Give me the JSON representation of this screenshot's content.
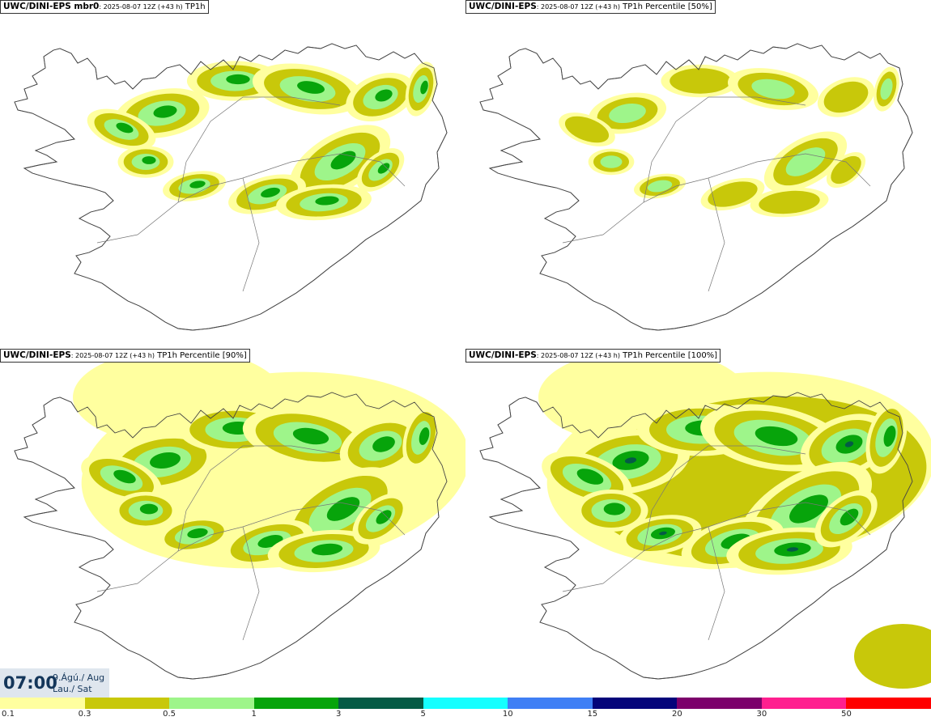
{
  "panels": [
    {
      "model": "UWC/DINI-EPS mbr0",
      "init": ": 2025-08-07 12Z (+43 h)",
      "field": " TP1h",
      "intensity": 0.55
    },
    {
      "model": "UWC/DINI-EPS",
      "init": ": 2025-08-07 12Z (+43 h)",
      "field": " TP1h Percentile [50%]",
      "intensity": 0.3
    },
    {
      "model": "UWC/DINI-EPS",
      "init": ": 2025-08-07 12Z (+43 h)",
      "field": " TP1h Percentile [90%]",
      "intensity": 0.8
    },
    {
      "model": "UWC/DINI-EPS",
      "init": ": 2025-08-07 12Z (+43 h)",
      "field": " TP1h Percentile [100%]",
      "intensity": 1.0
    }
  ],
  "valid_time": {
    "time": "07:00",
    "date_line1": "9.Ágú./ Aug",
    "date_line2": "Lau./ Sat"
  },
  "colorbar": {
    "colors": [
      "#ffff9f",
      "#c8c80a",
      "#9ef58a",
      "#07a40b",
      "#045b45",
      "#15ffff",
      "#3f7ff5",
      "#04047a",
      "#7c006b",
      "#ff1f8f",
      "#ff0000"
    ],
    "labels": [
      "0.1",
      "0.3",
      "0.5",
      "1",
      "3",
      "5",
      "10",
      "15",
      "20",
      "30",
      "50"
    ]
  }
}
